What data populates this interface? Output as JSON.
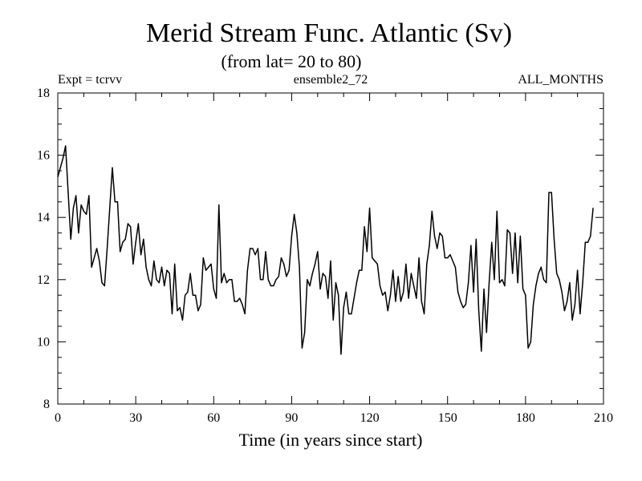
{
  "chart_data": {
    "type": "line",
    "title": "Merid Stream Func. Atlantic (Sv)",
    "subtitle": "(from lat= 20 to 80)",
    "header_left": "Expt = tcrvv",
    "header_center": "ensemble2_72",
    "header_right": "ALL_MONTHS",
    "xlabel": "Time (in years since start)",
    "ylabel": "",
    "xlim": [
      0,
      210
    ],
    "ylim": [
      8,
      18
    ],
    "x_major_ticks": [
      0,
      30,
      60,
      90,
      120,
      150,
      180,
      210
    ],
    "x_tick_labels": [
      "0",
      "30",
      "60",
      "90",
      "120",
      "150",
      "180",
      "210"
    ],
    "x_minor_step": 10,
    "y_major_ticks": [
      8,
      10,
      12,
      14,
      16,
      18
    ],
    "y_tick_labels": [
      "8",
      "10",
      "12",
      "14",
      "16",
      "18"
    ],
    "y_minor_step": 0.5,
    "grid": false,
    "series": [
      {
        "name": "Merid Stream Func. Atlantic",
        "color": "#000000",
        "x_start": 0,
        "x_step": 1,
        "values": [
          15.3,
          15.6,
          15.9,
          16.3,
          14.8,
          13.3,
          14.3,
          14.7,
          13.5,
          14.4,
          14.2,
          14.1,
          14.7,
          12.4,
          12.7,
          13.0,
          12.6,
          11.9,
          11.8,
          13.0,
          14.3,
          15.6,
          14.5,
          14.5,
          12.9,
          13.2,
          13.3,
          13.8,
          13.7,
          12.5,
          13.2,
          13.8,
          12.8,
          13.3,
          12.4,
          12.0,
          11.8,
          12.6,
          12.0,
          11.9,
          12.4,
          11.8,
          12.3,
          12.2,
          10.9,
          12.5,
          11.0,
          11.1,
          10.7,
          11.5,
          11.6,
          12.2,
          11.5,
          11.5,
          11.0,
          11.2,
          12.7,
          12.3,
          12.4,
          12.5,
          11.7,
          11.4,
          14.4,
          11.9,
          12.2,
          11.9,
          12.0,
          12.0,
          11.3,
          11.3,
          11.4,
          11.2,
          10.9,
          12.3,
          13.0,
          13.0,
          12.8,
          13.0,
          12.0,
          12.0,
          12.9,
          12.0,
          11.8,
          11.8,
          12.0,
          12.1,
          12.7,
          12.5,
          12.1,
          12.3,
          13.4,
          14.1,
          13.5,
          12.4,
          9.8,
          10.3,
          12.0,
          11.8,
          12.2,
          12.5,
          12.9,
          11.7,
          12.2,
          12.1,
          11.4,
          12.6,
          10.7,
          11.9,
          11.5,
          9.6,
          11.1,
          11.6,
          10.9,
          10.9,
          11.4,
          11.9,
          12.3,
          12.3,
          13.7,
          12.9,
          14.3,
          12.7,
          12.6,
          12.5,
          11.8,
          11.5,
          11.6,
          11.0,
          11.5,
          12.3,
          11.3,
          12.1,
          11.3,
          11.6,
          12.5,
          11.4,
          12.2,
          11.8,
          11.4,
          12.7,
          11.3,
          10.9,
          12.5,
          13.1,
          14.2,
          13.4,
          13.0,
          13.5,
          13.4,
          12.7,
          12.7,
          12.8,
          12.6,
          12.4,
          11.6,
          11.3,
          11.1,
          11.2,
          11.9,
          13.1,
          11.6,
          13.3,
          11.0,
          9.7,
          11.7,
          10.3,
          11.9,
          13.2,
          12.0,
          14.2,
          11.9,
          12.0,
          11.8,
          13.6,
          13.5,
          12.2,
          13.5,
          11.9,
          13.4,
          11.7,
          11.5,
          9.8,
          10.0,
          11.2,
          11.8,
          12.2,
          12.4,
          12.0,
          11.9,
          14.8,
          14.8,
          13.3,
          12.2,
          12.0,
          11.6,
          11.0,
          11.3,
          11.9,
          10.7,
          11.2,
          12.3,
          10.9,
          11.9,
          13.2,
          13.2,
          13.4,
          14.3
        ]
      }
    ]
  }
}
